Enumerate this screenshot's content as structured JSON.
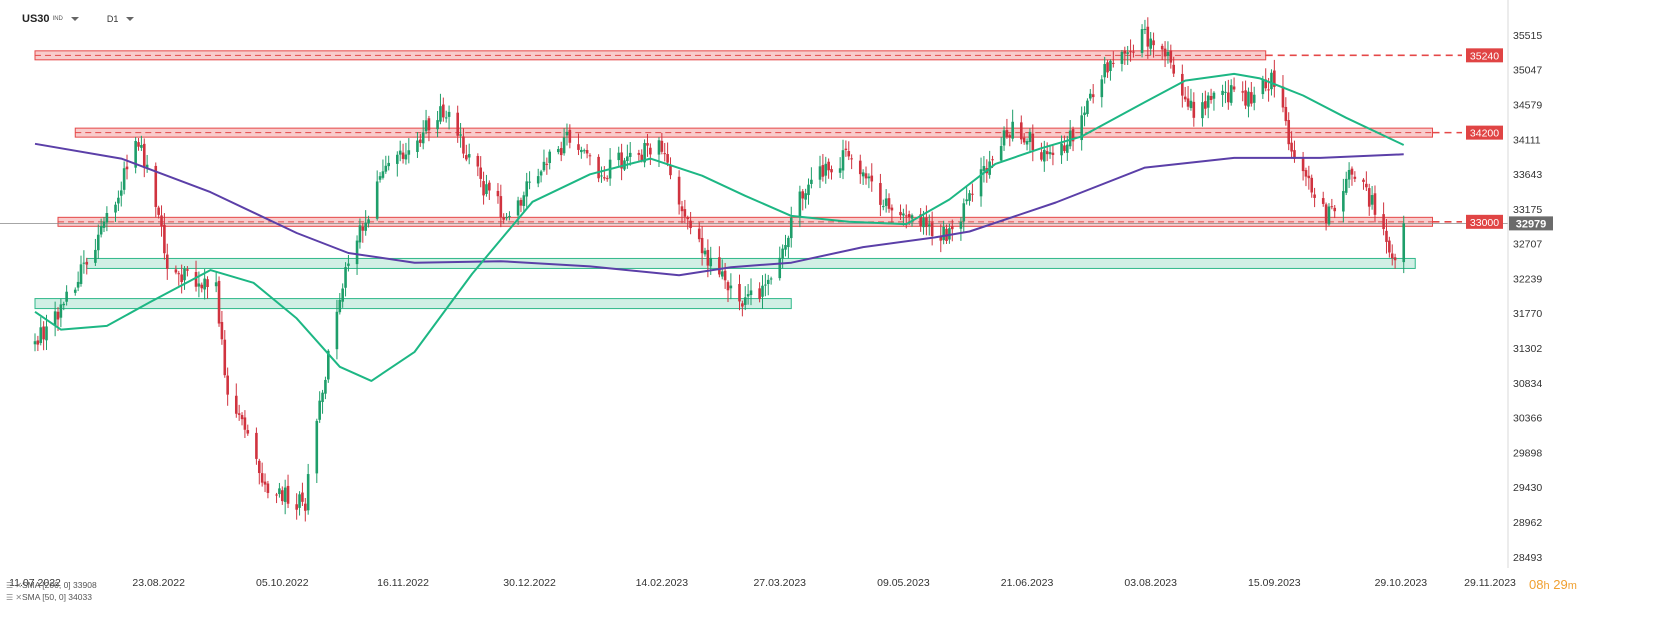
{
  "toolbar": {
    "symbol": "US30",
    "symbol_sub": "IND",
    "timeframe": "D1"
  },
  "legend": [
    {
      "icons": "☰ ✕",
      "text": "SMA [200, 0] 33908",
      "color": "#5b3fa8"
    },
    {
      "icons": "☰ ✕",
      "text": "SMA [50, 0] 34033",
      "color": "#1db784"
    }
  ],
  "countdown": {
    "hours": "08",
    "h_unit": "h",
    "minutes": "29",
    "m_unit": "m"
  },
  "chart_data": {
    "type": "candlestick",
    "instrument": "US30",
    "timeframe": "D1",
    "ylim": [
      28450,
      35850
    ],
    "y_ticks": [
      35515,
      35047,
      34579,
      34111,
      33643,
      33175,
      32707,
      32239,
      31770,
      31302,
      30834,
      30366,
      29898,
      29430,
      28962,
      28493
    ],
    "x_ticks": [
      "11.07.2022",
      "23.08.2022",
      "05.10.2022",
      "16.11.2022",
      "30.12.2022",
      "14.02.2023",
      "27.03.2023",
      "09.05.2023",
      "21.06.2023",
      "03.08.2023",
      "15.09.2023",
      "29.10.2023",
      "29.11.2023"
    ],
    "close_anchors": [
      [
        "2022-07-11",
        31350
      ],
      [
        "2022-07-20",
        31850
      ],
      [
        "2022-08-01",
        32700
      ],
      [
        "2022-08-16",
        34100
      ],
      [
        "2022-08-23",
        33150
      ],
      [
        "2022-08-26",
        32300
      ],
      [
        "2022-09-12",
        32150
      ],
      [
        "2022-09-15",
        30900
      ],
      [
        "2022-09-30",
        29400
      ],
      [
        "2022-10-13",
        29200
      ],
      [
        "2022-10-18",
        30600
      ],
      [
        "2022-10-28",
        32500
      ],
      [
        "2022-11-10",
        33700
      ],
      [
        "2022-11-30",
        34500
      ],
      [
        "2022-12-15",
        33400
      ],
      [
        "2022-12-22",
        33100
      ],
      [
        "2023-01-12",
        34100
      ],
      [
        "2023-01-24",
        33650
      ],
      [
        "2023-02-02",
        33900
      ],
      [
        "2023-02-14",
        34000
      ],
      [
        "2023-02-24",
        32800
      ],
      [
        "2023-03-13",
        31900
      ],
      [
        "2023-03-24",
        32200
      ],
      [
        "2023-04-05",
        33500
      ],
      [
        "2023-04-19",
        33900
      ],
      [
        "2023-05-04",
        33200
      ],
      [
        "2023-05-25",
        32800
      ],
      [
        "2023-06-05",
        33600
      ],
      [
        "2023-06-16",
        34300
      ],
      [
        "2023-06-26",
        33950
      ],
      [
        "2023-07-06",
        34100
      ],
      [
        "2023-07-18",
        35100
      ],
      [
        "2023-08-01",
        35500
      ],
      [
        "2023-08-10",
        35150
      ],
      [
        "2023-08-18",
        34500
      ],
      [
        "2023-08-31",
        34750
      ],
      [
        "2023-09-05",
        34600
      ],
      [
        "2023-09-14",
        34900
      ],
      [
        "2023-09-21",
        34050
      ],
      [
        "2023-10-03",
        33050
      ],
      [
        "2023-10-12",
        33700
      ],
      [
        "2023-10-20",
        33200
      ],
      [
        "2023-10-26",
        32450
      ],
      [
        "2023-10-30",
        32979
      ]
    ],
    "last_price": 32979,
    "series": [
      {
        "name": "SMA [200, 0]",
        "last": 33908,
        "color": "#5b3fa8",
        "points": [
          [
            "2022-07-11",
            34050
          ],
          [
            "2022-08-10",
            33850
          ],
          [
            "2022-09-10",
            33400
          ],
          [
            "2022-10-10",
            32850
          ],
          [
            "2022-10-28",
            32580
          ],
          [
            "2022-11-20",
            32450
          ],
          [
            "2022-12-20",
            32470
          ],
          [
            "2023-01-20",
            32400
          ],
          [
            "2023-02-20",
            32280
          ],
          [
            "2023-03-10",
            32390
          ],
          [
            "2023-03-31",
            32450
          ],
          [
            "2023-04-25",
            32660
          ],
          [
            "2023-05-20",
            32790
          ],
          [
            "2023-06-01",
            32870
          ],
          [
            "2023-07-01",
            33260
          ],
          [
            "2023-08-01",
            33730
          ],
          [
            "2023-09-01",
            33860
          ],
          [
            "2023-10-01",
            33860
          ],
          [
            "2023-10-30",
            33908
          ]
        ]
      },
      {
        "name": "SMA [50, 0]",
        "last": 34033,
        "color": "#1db784",
        "points": [
          [
            "2022-07-11",
            31790
          ],
          [
            "2022-07-20",
            31550
          ],
          [
            "2022-08-05",
            31600
          ],
          [
            "2022-08-20",
            31920
          ],
          [
            "2022-09-10",
            32350
          ],
          [
            "2022-09-25",
            32180
          ],
          [
            "2022-10-10",
            31700
          ],
          [
            "2022-10-25",
            31050
          ],
          [
            "2022-11-05",
            30860
          ],
          [
            "2022-11-20",
            31250
          ],
          [
            "2022-12-10",
            32300
          ],
          [
            "2022-12-31",
            33270
          ],
          [
            "2023-01-20",
            33640
          ],
          [
            "2023-02-10",
            33850
          ],
          [
            "2023-02-28",
            33620
          ],
          [
            "2023-03-15",
            33350
          ],
          [
            "2023-03-31",
            33080
          ],
          [
            "2023-04-20",
            33000
          ],
          [
            "2023-05-10",
            32970
          ],
          [
            "2023-05-25",
            33300
          ],
          [
            "2023-06-10",
            33780
          ],
          [
            "2023-06-26",
            33990
          ],
          [
            "2023-07-10",
            34150
          ],
          [
            "2023-07-31",
            34590
          ],
          [
            "2023-08-15",
            34900
          ],
          [
            "2023-09-01",
            34990
          ],
          [
            "2023-09-10",
            34930
          ],
          [
            "2023-09-25",
            34700
          ],
          [
            "2023-10-10",
            34400
          ],
          [
            "2023-10-30",
            34033
          ]
        ]
      }
    ],
    "resistance_zones": [
      {
        "level": 35240,
        "label": "35240",
        "from": "2022-07-11",
        "to": "2023-09-12"
      },
      {
        "level": 34200,
        "label": "34200",
        "from": "2022-07-25",
        "to": "2023-11-09"
      },
      {
        "level": 33000,
        "label": "33000",
        "from": "2022-07-19",
        "to": "2023-11-09"
      }
    ],
    "support_zones": [
      {
        "center": 32440,
        "from": "2022-07-29",
        "to": "2023-11-03"
      },
      {
        "center": 31900,
        "from": "2022-07-11",
        "to": "2023-03-31"
      }
    ],
    "colors": {
      "up": "#1e9e6a",
      "down": "#d0333f",
      "resistance": "#e54848",
      "support": "#2fb88a",
      "last_price_bg": "#6b6b6b"
    }
  }
}
